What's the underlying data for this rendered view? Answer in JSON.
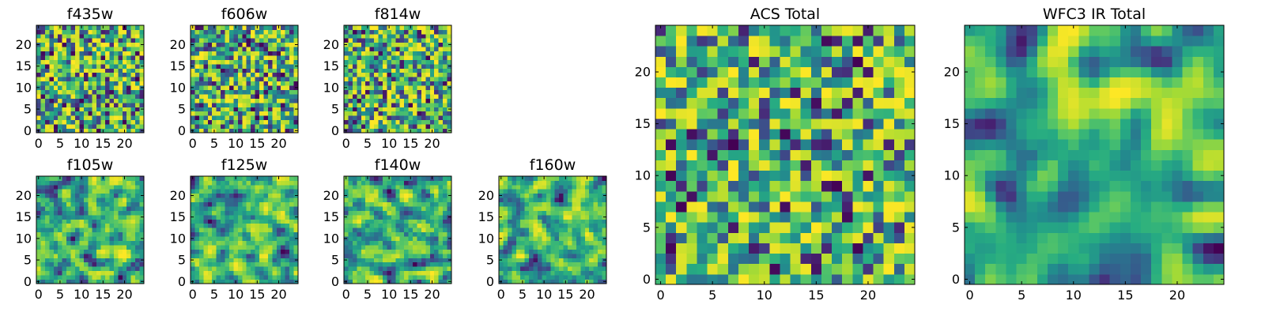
{
  "figure": {
    "panels": [
      {
        "id": "f435w",
        "title": "f435w",
        "colormap": "viridis",
        "grid_size": 25,
        "xticks": [
          "0",
          "5",
          "10",
          "15",
          "20"
        ],
        "yticks": [
          "0",
          "5",
          "10",
          "15",
          "20"
        ]
      },
      {
        "id": "f606w",
        "title": "f606w",
        "colormap": "viridis",
        "grid_size": 25,
        "xticks": [
          "0",
          "5",
          "10",
          "15",
          "20"
        ],
        "yticks": [
          "0",
          "5",
          "10",
          "15",
          "20"
        ]
      },
      {
        "id": "f814w",
        "title": "f814w",
        "colormap": "viridis",
        "grid_size": 25,
        "xticks": [
          "0",
          "5",
          "10",
          "15",
          "20"
        ],
        "yticks": [
          "0",
          "5",
          "10",
          "15",
          "20"
        ]
      },
      {
        "id": "f105w",
        "title": "f105w",
        "colormap": "viridis",
        "grid_size": 25,
        "xticks": [
          "0",
          "5",
          "10",
          "15",
          "20"
        ],
        "yticks": [
          "0",
          "5",
          "10",
          "15",
          "20"
        ]
      },
      {
        "id": "f125w",
        "title": "f125w",
        "colormap": "viridis",
        "grid_size": 25,
        "xticks": [
          "0",
          "5",
          "10",
          "15",
          "20"
        ],
        "yticks": [
          "0",
          "5",
          "10",
          "15",
          "20"
        ]
      },
      {
        "id": "f140w",
        "title": "f140w",
        "colormap": "viridis",
        "grid_size": 25,
        "xticks": [
          "0",
          "5",
          "10",
          "15",
          "20"
        ],
        "yticks": [
          "0",
          "5",
          "10",
          "15",
          "20"
        ]
      },
      {
        "id": "f160w",
        "title": "f160w",
        "colormap": "viridis",
        "grid_size": 25,
        "xticks": [
          "0",
          "5",
          "10",
          "15",
          "20"
        ],
        "yticks": [
          "0",
          "5",
          "10",
          "15",
          "20"
        ]
      },
      {
        "id": "acs-total",
        "title": "ACS Total",
        "colormap": "viridis",
        "grid_size": 25,
        "xticks": [
          "0",
          "5",
          "10",
          "15",
          "20"
        ],
        "yticks": [
          "0",
          "5",
          "10",
          "15",
          "20"
        ]
      },
      {
        "id": "wfc3-ir-total",
        "title": "WFC3 IR Total",
        "colormap": "viridis",
        "grid_size": 25,
        "xticks": [
          "0",
          "5",
          "10",
          "15",
          "20"
        ],
        "yticks": [
          "0",
          "5",
          "10",
          "15",
          "20"
        ]
      }
    ]
  },
  "chart_data": [
    {
      "type": "heatmap",
      "title": "f435w",
      "x": [
        0,
        24
      ],
      "y": [
        0,
        24
      ],
      "xlim": [
        -0.5,
        24.5
      ],
      "ylim": [
        -0.5,
        24.5
      ],
      "colormap": "viridis",
      "grid": false
    },
    {
      "type": "heatmap",
      "title": "f606w",
      "x": [
        0,
        24
      ],
      "y": [
        0,
        24
      ],
      "xlim": [
        -0.5,
        24.5
      ],
      "ylim": [
        -0.5,
        24.5
      ],
      "colormap": "viridis",
      "grid": false
    },
    {
      "type": "heatmap",
      "title": "f814w",
      "x": [
        0,
        24
      ],
      "y": [
        0,
        24
      ],
      "xlim": [
        -0.5,
        24.5
      ],
      "ylim": [
        -0.5,
        24.5
      ],
      "colormap": "viridis",
      "grid": false
    },
    {
      "type": "heatmap",
      "title": "f105w",
      "x": [
        0,
        24
      ],
      "y": [
        0,
        24
      ],
      "xlim": [
        -0.5,
        24.5
      ],
      "ylim": [
        -0.5,
        24.5
      ],
      "colormap": "viridis",
      "grid": false
    },
    {
      "type": "heatmap",
      "title": "f125w",
      "x": [
        0,
        24
      ],
      "y": [
        0,
        24
      ],
      "xlim": [
        -0.5,
        24.5
      ],
      "ylim": [
        -0.5,
        24.5
      ],
      "colormap": "viridis",
      "grid": false
    },
    {
      "type": "heatmap",
      "title": "f140w",
      "x": [
        0,
        24
      ],
      "y": [
        0,
        24
      ],
      "xlim": [
        -0.5,
        24.5
      ],
      "ylim": [
        -0.5,
        24.5
      ],
      "colormap": "viridis",
      "grid": false
    },
    {
      "type": "heatmap",
      "title": "f160w",
      "x": [
        0,
        24
      ],
      "y": [
        0,
        24
      ],
      "xlim": [
        -0.5,
        24.5
      ],
      "ylim": [
        -0.5,
        24.5
      ],
      "colormap": "viridis",
      "grid": false
    },
    {
      "type": "heatmap",
      "title": "ACS Total",
      "x": [
        0,
        24
      ],
      "y": [
        0,
        24
      ],
      "xlim": [
        -0.5,
        24.5
      ],
      "ylim": [
        -0.5,
        24.5
      ],
      "colormap": "viridis",
      "grid": false
    },
    {
      "type": "heatmap",
      "title": "WFC3 IR Total",
      "x": [
        0,
        24
      ],
      "y": [
        0,
        24
      ],
      "xlim": [
        -0.5,
        24.5
      ],
      "ylim": [
        -0.5,
        24.5
      ],
      "colormap": "viridis",
      "grid": false
    }
  ]
}
